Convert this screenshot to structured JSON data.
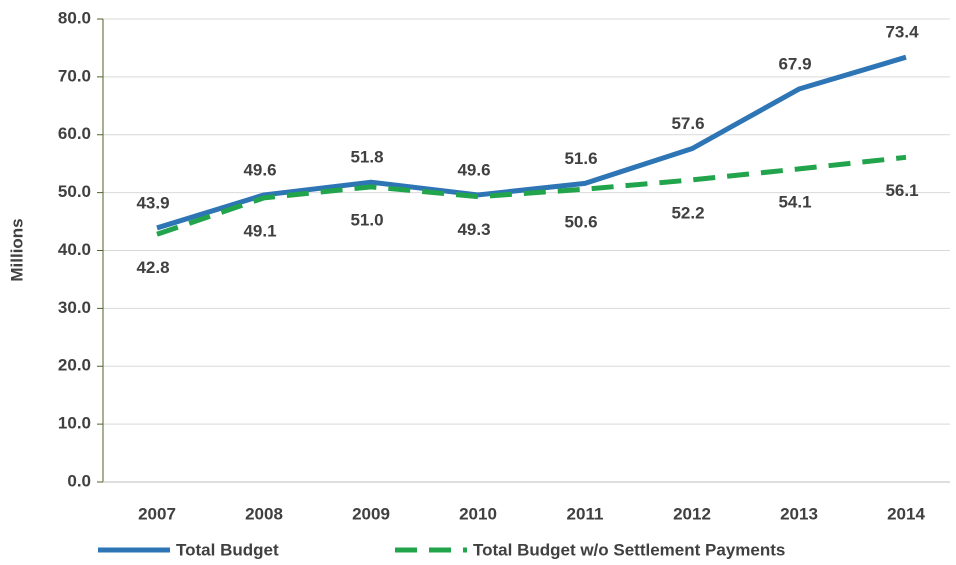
{
  "chart_data": {
    "type": "line",
    "y_label": "Millions",
    "categories": [
      "2007",
      "2008",
      "2009",
      "2010",
      "2011",
      "2012",
      "2013",
      "2014"
    ],
    "series": [
      {
        "name": "Total Budget",
        "color": "#2e75b6",
        "dash": false,
        "values": [
          43.9,
          49.6,
          51.8,
          49.6,
          51.6,
          57.6,
          67.9,
          73.4
        ],
        "value_labels": [
          "43.9",
          "49.6",
          "51.8",
          "49.6",
          "51.6",
          "57.6",
          "67.9",
          "73.4"
        ],
        "label_position": "above"
      },
      {
        "name": "Total Budget w/o Settlement Payments",
        "color": "#22a44c",
        "dash": true,
        "values": [
          42.8,
          49.1,
          51.0,
          49.3,
          50.6,
          52.2,
          54.1,
          56.1
        ],
        "value_labels": [
          "42.8",
          "49.1",
          "51.0",
          "49.3",
          "50.6",
          "52.2",
          "54.1",
          "56.1"
        ],
        "label_position": "below"
      }
    ],
    "ylim": [
      0,
      80
    ],
    "yticks": [
      {
        "value": 0,
        "label": "0.0"
      },
      {
        "value": 10,
        "label": "10.0"
      },
      {
        "value": 20,
        "label": "20.0"
      },
      {
        "value": 30,
        "label": "30.0"
      },
      {
        "value": 40,
        "label": "40.0"
      },
      {
        "value": 50,
        "label": "50.0"
      },
      {
        "value": 60,
        "label": "60.0"
      },
      {
        "value": 70,
        "label": "70.0"
      },
      {
        "value": 80,
        "label": "80.0"
      }
    ],
    "grid": true,
    "legend": "bottom"
  }
}
